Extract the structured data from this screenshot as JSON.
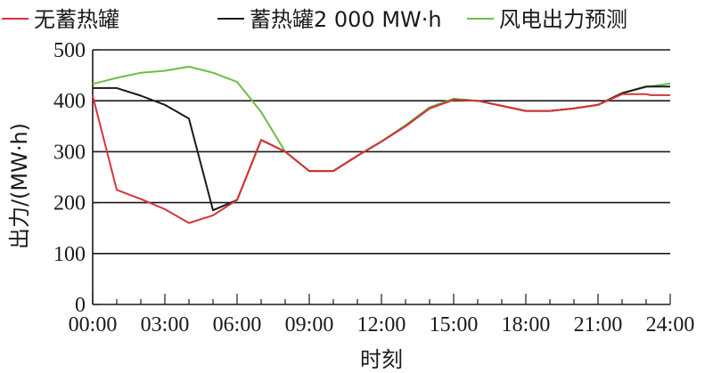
{
  "chart_data": {
    "type": "line",
    "title": "",
    "xlabel": "时刻",
    "ylabel": "出力/(MW·h)",
    "xlim": [
      0,
      24
    ],
    "ylim": [
      0,
      500
    ],
    "grid": "horizontal",
    "legend_position": "top",
    "x_ticks": [
      {
        "value": 0,
        "label": "00:00"
      },
      {
        "value": 3,
        "label": "03:00"
      },
      {
        "value": 6,
        "label": "06:00"
      },
      {
        "value": 9,
        "label": "09:00"
      },
      {
        "value": 12,
        "label": "12:00"
      },
      {
        "value": 15,
        "label": "15:00"
      },
      {
        "value": 18,
        "label": "18:00"
      },
      {
        "value": 21,
        "label": "21:00"
      },
      {
        "value": 24,
        "label": "24:00"
      }
    ],
    "y_ticks": [
      {
        "value": 0,
        "label": "0"
      },
      {
        "value": 100,
        "label": "100"
      },
      {
        "value": 200,
        "label": "200"
      },
      {
        "value": 300,
        "label": "300"
      },
      {
        "value": 400,
        "label": "400"
      },
      {
        "value": 500,
        "label": "500"
      }
    ],
    "series": [
      {
        "name": "无蓄热罐",
        "color": "#d6343a",
        "points": [
          [
            0,
            410
          ],
          [
            1,
            225
          ],
          [
            2,
            207
          ],
          [
            3,
            187
          ],
          [
            4,
            160
          ],
          [
            5,
            175
          ],
          [
            6,
            205
          ],
          [
            7,
            323
          ],
          [
            8,
            300
          ],
          [
            9,
            262
          ],
          [
            10,
            262
          ],
          [
            11,
            292
          ],
          [
            12,
            320
          ],
          [
            13,
            350
          ],
          [
            14,
            385
          ],
          [
            15,
            402
          ],
          [
            16,
            400
          ],
          [
            17,
            390
          ],
          [
            18,
            380
          ],
          [
            19,
            380
          ],
          [
            20,
            385
          ],
          [
            21,
            392
          ],
          [
            22,
            413
          ],
          [
            23,
            413
          ],
          [
            23.2,
            411
          ],
          [
            24,
            411
          ]
        ]
      },
      {
        "name": "蓄热罐2 000 MW·h",
        "color": "#1a1a1a",
        "points": [
          [
            0,
            425
          ],
          [
            1,
            425
          ],
          [
            2,
            410
          ],
          [
            3,
            392
          ],
          [
            4,
            365
          ],
          [
            5,
            185
          ],
          [
            6,
            205
          ],
          [
            7,
            323
          ],
          [
            8,
            300
          ],
          [
            9,
            262
          ],
          [
            10,
            262
          ],
          [
            11,
            292
          ],
          [
            12,
            320
          ],
          [
            13,
            350
          ],
          [
            14,
            385
          ],
          [
            15,
            402
          ],
          [
            16,
            400
          ],
          [
            17,
            390
          ],
          [
            18,
            380
          ],
          [
            19,
            380
          ],
          [
            20,
            385
          ],
          [
            21,
            392
          ],
          [
            22,
            415
          ],
          [
            23,
            428
          ],
          [
            24,
            428
          ]
        ]
      },
      {
        "name": "风电出力预测",
        "color": "#6cbd45",
        "points": [
          [
            0,
            433
          ],
          [
            1,
            445
          ],
          [
            2,
            455
          ],
          [
            3,
            459
          ],
          [
            4,
            467
          ],
          [
            5,
            455
          ],
          [
            6,
            437
          ],
          [
            7,
            378
          ],
          [
            8,
            300
          ],
          [
            9,
            262
          ],
          [
            10,
            262
          ],
          [
            11,
            292
          ],
          [
            12,
            320
          ],
          [
            13,
            352
          ],
          [
            14,
            387
          ],
          [
            15,
            404
          ],
          [
            16,
            400
          ],
          [
            17,
            390
          ],
          [
            18,
            380
          ],
          [
            19,
            380
          ],
          [
            20,
            385
          ],
          [
            21,
            392
          ],
          [
            22,
            415
          ],
          [
            23,
            427
          ],
          [
            24,
            434
          ]
        ]
      }
    ]
  }
}
